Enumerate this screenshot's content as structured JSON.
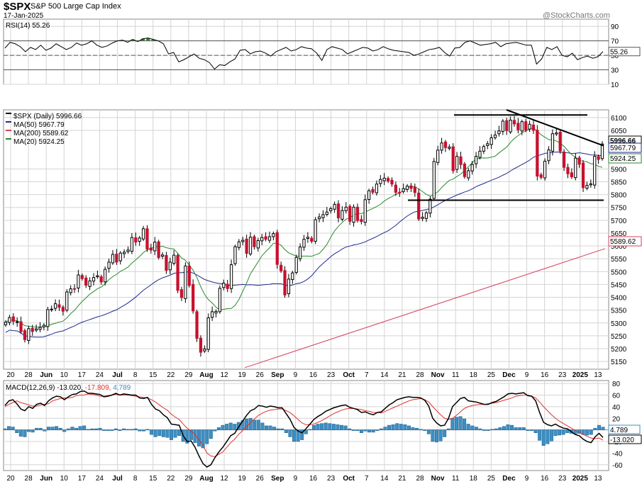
{
  "header": {
    "symbol": "$SPX",
    "name": "S&P 500 Large Cap Index",
    "date": "17-Jan-2025",
    "brand": "@StockCharts.com"
  },
  "colors": {
    "price_up": "#ffffff",
    "price_down": "#c8102e",
    "ma50": "#1f2a8c",
    "ma200": "#d8405a",
    "ma20": "#2a8a2a",
    "rsi_line": "#000000",
    "rsi_fill": "#3d7a3d",
    "macd_line": "#000000",
    "macd_signal": "#e03030",
    "macd_hist": "#3b8fc4",
    "grid": "#d4d4d4"
  },
  "chart_data": [
    {
      "type": "line",
      "panel": "rsi",
      "legend": "RSI(14) 55.26",
      "last_value_tag": "55.26",
      "y_ticks": [
        "90",
        "70",
        "50",
        "30",
        "10"
      ],
      "ylim": [
        10,
        100
      ],
      "reference_levels": [
        70,
        50,
        30
      ],
      "values": [
        60,
        68,
        66,
        62,
        55,
        61,
        58,
        64,
        57,
        60,
        66,
        62,
        58,
        61,
        67,
        64,
        66,
        70,
        64,
        61,
        63,
        67,
        70,
        71,
        68,
        72,
        69,
        73,
        74,
        72,
        70,
        66,
        52,
        54,
        41,
        44,
        48,
        52,
        46,
        44,
        40,
        31,
        37,
        36,
        41,
        45,
        57,
        58,
        52,
        55,
        56,
        53,
        49,
        55,
        58,
        61,
        56,
        58,
        62,
        60,
        59,
        53,
        43,
        58,
        62,
        60,
        58,
        52,
        55,
        58,
        61,
        60,
        56,
        58,
        62,
        59,
        57,
        56,
        55,
        54,
        50,
        52,
        55,
        58,
        59,
        61,
        54,
        49,
        60,
        61,
        68,
        70,
        67,
        64,
        65,
        66,
        68,
        62,
        66,
        67,
        68,
        66,
        64,
        64,
        38,
        45,
        61,
        58,
        62,
        50,
        48,
        53,
        44,
        47,
        49,
        46,
        48,
        55.26
      ]
    },
    {
      "type": "candlestick",
      "panel": "price",
      "legend": [
        "$SPX (Daily) 5996.66",
        "MA(50) 5967.79",
        "MA(200) 5589.62",
        "MA(20) 5924.25"
      ],
      "last_value_tags": [
        "5996.66",
        "5967.79",
        "5924.25",
        "5589.62"
      ],
      "ylim": [
        5120,
        6130
      ],
      "y_ticks": [
        "6100",
        "6050",
        "5900",
        "5850",
        "5800",
        "5750",
        "5700",
        "5650",
        "5600",
        "5550",
        "5500",
        "5450",
        "5400",
        "5350",
        "5300",
        "5250",
        "5200",
        "5150"
      ],
      "x_ticks": [
        "20",
        "28",
        "Jun",
        "10",
        "17",
        "24",
        "Jul",
        "8",
        "15",
        "22",
        "29",
        "Aug",
        "12",
        "19",
        "26",
        "Sep",
        "9",
        "16",
        "23",
        "Oct",
        "7",
        "14",
        "21",
        "28",
        "Nov",
        "11",
        "18",
        "25",
        "Dec",
        "9",
        "16",
        "23",
        "2025",
        "13"
      ],
      "close": [
        5303,
        5321,
        5306,
        5305,
        5266,
        5235,
        5278,
        5267,
        5277,
        5283,
        5291,
        5352,
        5354,
        5375,
        5361,
        5346,
        5421,
        5433,
        5431,
        5487,
        5473,
        5447,
        5464,
        5477,
        5484,
        5460,
        5509,
        5537,
        5567,
        5537,
        5572,
        5576,
        5584,
        5633,
        5615,
        5631,
        5667,
        5588,
        5584,
        5615,
        5555,
        5565,
        5505,
        5537,
        5564,
        5427,
        5399,
        5522,
        5446,
        5347,
        5240,
        5186,
        5199,
        5320,
        5344,
        5345,
        5435,
        5455,
        5434,
        5527,
        5597,
        5616,
        5622,
        5571,
        5634,
        5597,
        5621,
        5633,
        5626,
        5636,
        5648,
        5528,
        5503,
        5409,
        5471,
        5495,
        5555,
        5596,
        5626,
        5634,
        5618,
        5702,
        5713,
        5722,
        5732,
        5745,
        5762,
        5709,
        5738,
        5751,
        5696,
        5751,
        5699,
        5695,
        5780,
        5815,
        5809,
        5841,
        5859,
        5864,
        5853,
        5841,
        5809,
        5808,
        5823,
        5833,
        5824,
        5808,
        5705,
        5712,
        5729,
        5782,
        5929,
        5973,
        6001,
        5983,
        5985,
        5893,
        5949,
        5917,
        5870,
        5893,
        5917,
        5949,
        5969,
        5987,
        5998,
        6021,
        6032,
        6048,
        6086,
        6049,
        6090,
        6075,
        6052,
        6084,
        6051,
        6074,
        6050,
        5872,
        5867,
        5930,
        5974,
        6037,
        6040,
        5970,
        5906,
        5881,
        5869,
        5942,
        5918,
        5827,
        5836,
        5842,
        5949,
        5937,
        5997
      ]
    },
    {
      "type": "line",
      "panel": "price-overlays",
      "series": [
        {
          "name": "MA(50) 5967.79",
          "values": [
            5160,
            5967.79
          ]
        },
        {
          "name": "MA(200) 5589.62",
          "values": [
            5126,
            5589.62
          ]
        },
        {
          "name": "MA(20) 5924.25",
          "values": [
            5155,
            5924.25
          ]
        }
      ],
      "trendlines": [
        {
          "from": [
            640,
            6110
          ],
          "to": [
            828,
            6110
          ]
        },
        {
          "from": [
            575,
            5778
          ],
          "to": [
            851,
            5778
          ]
        },
        {
          "from": [
            714,
            6130
          ],
          "to": [
            851,
            5990
          ]
        }
      ]
    },
    {
      "type": "line",
      "panel": "macd",
      "legend": "MACD(12,26,9) -13.020, -17.809, 4.789",
      "last_value_tags": [
        "4.789",
        "-13.020"
      ],
      "y_ticks": [
        "80",
        "60",
        "40",
        "20",
        "-20",
        "-40",
        "-60"
      ],
      "ylim": [
        -70,
        85
      ],
      "series": [
        {
          "name": "MACD(12,26,9) -13.020",
          "values": [
            42,
            50,
            52,
            45,
            36,
            33,
            40,
            37,
            44,
            46,
            42,
            50,
            55,
            58,
            57,
            52,
            57,
            61,
            62,
            66,
            67,
            63,
            63,
            62,
            61,
            57,
            58,
            60,
            63,
            60,
            62,
            61,
            60,
            60,
            55,
            54,
            56,
            44,
            36,
            33,
            26,
            21,
            10,
            9,
            8,
            -10,
            -20,
            -19,
            -30,
            -45,
            -58,
            -64,
            -60,
            -48,
            -38,
            -30,
            -20,
            -10,
            -6,
            5,
            15,
            25,
            33,
            36,
            42,
            41,
            39,
            41,
            40,
            38,
            38,
            28,
            18,
            4,
            -2,
            -5,
            2,
            10,
            18,
            23,
            27,
            32,
            35,
            38,
            40,
            42,
            43,
            39,
            37,
            35,
            30,
            31,
            28,
            26,
            30,
            31,
            37,
            43,
            47,
            52,
            54,
            56,
            57,
            56,
            56,
            55,
            51,
            41,
            20,
            12,
            7,
            8,
            20,
            40,
            47,
            54,
            56,
            50,
            49,
            48,
            46,
            44,
            44,
            47,
            49,
            53,
            57,
            62,
            63,
            62,
            63,
            64,
            59,
            58,
            50,
            30,
            13,
            9,
            7,
            10,
            6,
            3,
            2,
            -3,
            -8,
            -10,
            -16,
            -20,
            -22,
            -12,
            -6,
            -13.02
          ]
        },
        {
          "name": "-17.809",
          "values": [
            40,
            44,
            47,
            50,
            47,
            45,
            43,
            41,
            41,
            43,
            44,
            45,
            50,
            52,
            54,
            55,
            55,
            56,
            59,
            60,
            60,
            62,
            61,
            60,
            58,
            58,
            59,
            60,
            61,
            60,
            60,
            60,
            59,
            58,
            57,
            56,
            55,
            52,
            48,
            43,
            38,
            34,
            27,
            22,
            18,
            10,
            3,
            -2,
            -8,
            -17,
            -27,
            -40,
            -45,
            -46,
            -42,
            -38,
            -30,
            -22,
            -16,
            -8,
            -1,
            6,
            13,
            19,
            25,
            29,
            32,
            34,
            35,
            36,
            36,
            33,
            30,
            24,
            18,
            12,
            9,
            9,
            10,
            13,
            16,
            20,
            24,
            28,
            31,
            34,
            36,
            37,
            37,
            36,
            35,
            33,
            32,
            30,
            30,
            29,
            32,
            35,
            38,
            41,
            44,
            47,
            50,
            52,
            53,
            54,
            52,
            48,
            40,
            33,
            26,
            20,
            18,
            20,
            25,
            31,
            37,
            40,
            42,
            43,
            44,
            44,
            45,
            46,
            47,
            49,
            51,
            53,
            55,
            58,
            59,
            60,
            60,
            58,
            55,
            48,
            40,
            33,
            26,
            20,
            15,
            11,
            7,
            3,
            -1,
            -4,
            -8,
            -11,
            -14,
            -15,
            -14,
            -17.809
          ]
        }
      ],
      "histogram": [
        4.789
      ]
    }
  ]
}
